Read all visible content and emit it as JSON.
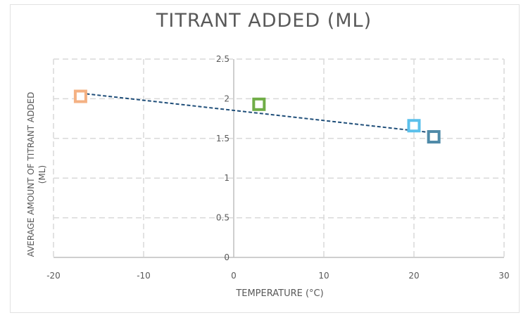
{
  "chart_data": {
    "type": "scatter",
    "title": "TITRANT ADDED (ML)",
    "xlabel": "TEMPERATURE (°C)",
    "ylabel_line1": "AVERAGE AMOUNT OF TITRANT ADDED",
    "ylabel_line2": "(ML)",
    "xlim": [
      -20,
      30
    ],
    "ylim": [
      0,
      2.5
    ],
    "x_ticks": [
      "-20",
      "-10",
      "0",
      "10",
      "20",
      "30"
    ],
    "y_ticks": [
      "0",
      "0.5",
      "1",
      "1.5",
      "2",
      "2.5"
    ],
    "grid": true,
    "points": [
      {
        "x": -17,
        "y": 2.03,
        "color": "#f4b183"
      },
      {
        "x": 2.8,
        "y": 1.93,
        "color": "#70ad47"
      },
      {
        "x": 20,
        "y": 1.66,
        "color": "#5bc0eb"
      },
      {
        "x": 22.2,
        "y": 1.52,
        "color": "#4f8aa8"
      }
    ],
    "trendline": {
      "type": "linear",
      "x_start": -17,
      "y_start": 2.07,
      "x_end": 22.2,
      "y_end": 1.57,
      "color": "#1f4e79"
    },
    "axis_color": "#bfbfbf",
    "grid_color": "#d9d9d9"
  }
}
